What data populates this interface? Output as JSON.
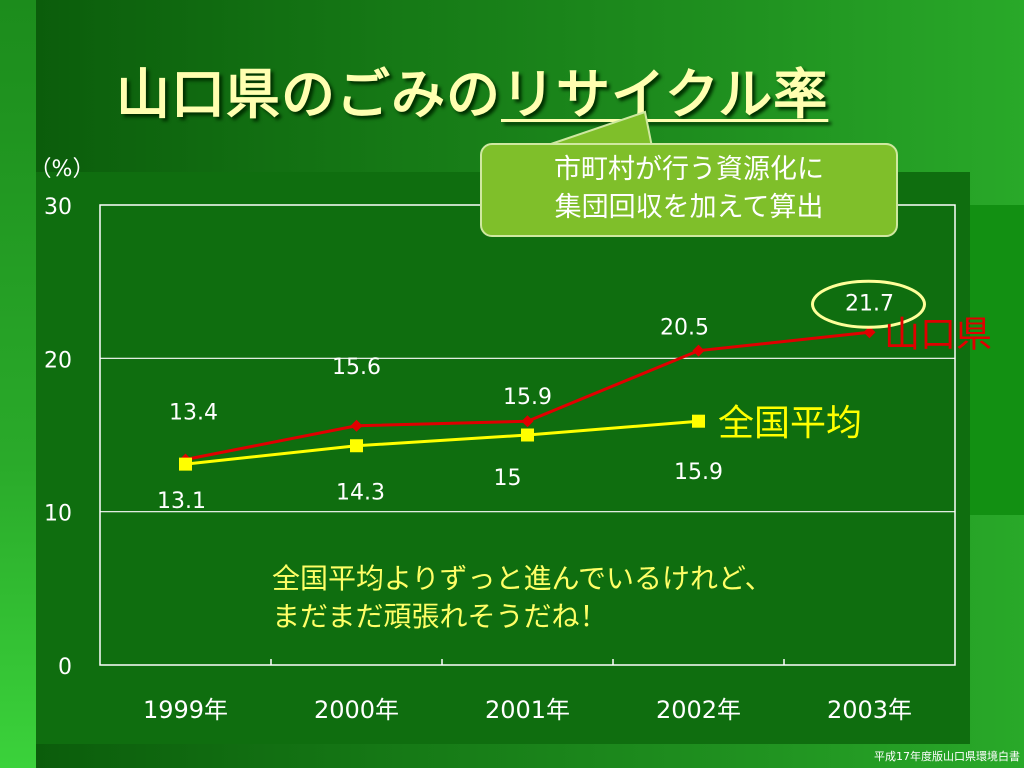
{
  "title_plain": "山口県のごみの",
  "title_underlined": "リサイクル率",
  "callout": {
    "line1": "市町村が行う資源化に",
    "line2": "集団回収を加えて算出"
  },
  "comment": {
    "line1": "全国平均よりずっと進んでいるけれど、",
    "line2": "まだまだ頑張れそうだね！"
  },
  "footnote": "平成17年度版山口県環境白書",
  "colors": {
    "yamaguchi": "#e00000",
    "national": "#ffff00",
    "highlight": "#ffff99",
    "text": "#ffffff"
  },
  "chart_data": {
    "type": "line",
    "categories": [
      "1999年",
      "2000年",
      "2001年",
      "2002年",
      "2003年"
    ],
    "ylim": [
      0,
      30
    ],
    "yticks": [
      0,
      10,
      20,
      30
    ],
    "ylabel": "（%）",
    "series": [
      {
        "name": "山口県",
        "marker": "diamond",
        "values": [
          13.4,
          15.6,
          15.9,
          20.5,
          21.7
        ],
        "labels": [
          "13.4",
          "15.6",
          "15.9",
          "20.5",
          "21.7"
        ]
      },
      {
        "name": "全国平均",
        "marker": "square",
        "values": [
          13.1,
          14.3,
          15,
          15.9,
          null
        ],
        "labels": [
          "13.1",
          "14.3",
          "15",
          "15.9",
          ""
        ]
      }
    ],
    "grid": true,
    "highlighted_label": "21.7"
  }
}
